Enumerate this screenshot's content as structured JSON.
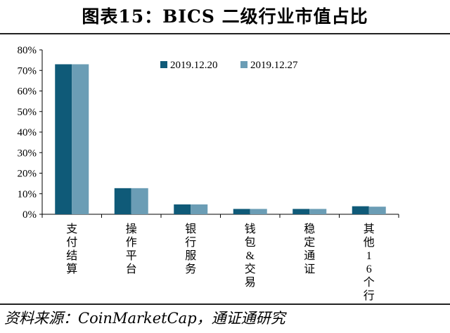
{
  "header": {
    "title": "图表15：BICS 二级行业市值占比"
  },
  "footer": {
    "source": "资料来源：CoinMarketCap，通证通研究"
  },
  "chart_data": {
    "type": "bar",
    "title": "图表15：BICS 二级行业市值占比",
    "xlabel": "",
    "ylabel": "",
    "ylim": [
      0,
      80
    ],
    "yticks": [
      "0%",
      "10%",
      "20%",
      "30%",
      "40%",
      "50%",
      "60%",
      "70%",
      "80%"
    ],
    "categories": [
      "支付结算",
      "操作平台",
      "银行服务",
      "钱包&交易",
      "稳定通证",
      "其他16个行业"
    ],
    "series": [
      {
        "name": "2019.12.20",
        "color": "#0f5a78",
        "values": [
          73.0,
          12.7,
          4.8,
          2.6,
          2.6,
          3.9
        ]
      },
      {
        "name": "2019.12.27",
        "color": "#6b9db5",
        "values": [
          73.0,
          12.7,
          4.8,
          2.6,
          2.6,
          3.7
        ]
      }
    ],
    "grid": false,
    "legend": "top-right"
  }
}
